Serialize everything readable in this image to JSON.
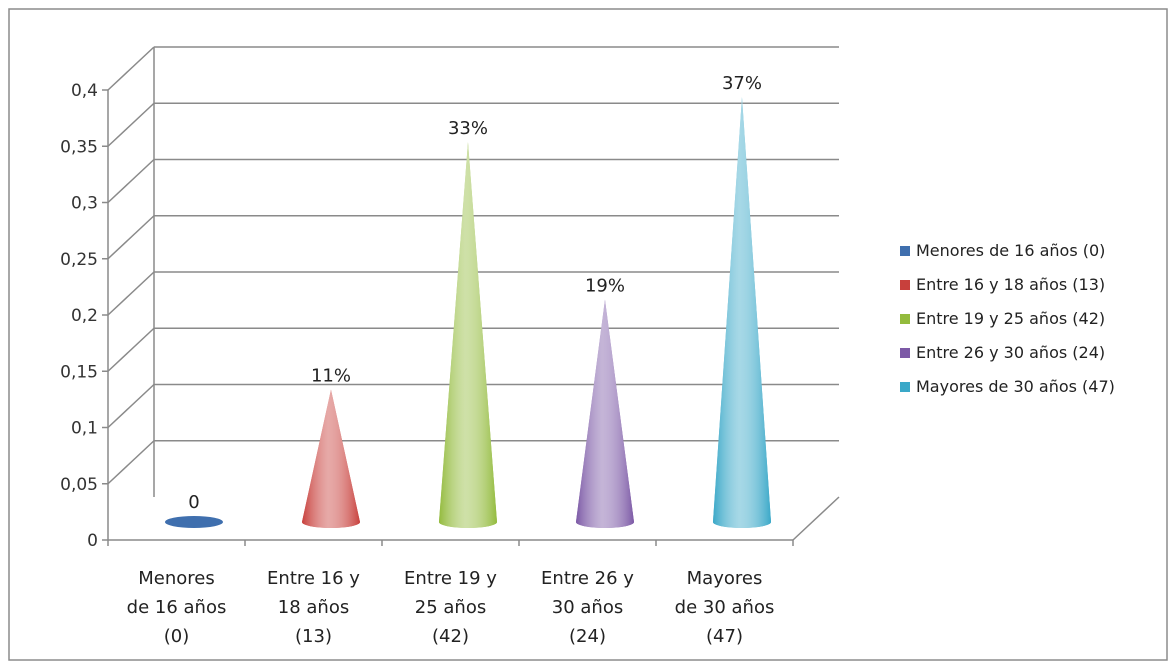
{
  "chart_data": {
    "type": "bar",
    "style": "3d-cone",
    "categories": [
      [
        "Menores",
        "de 16 años",
        "(0)"
      ],
      [
        "Entre 16 y",
        "18 años",
        "(13)"
      ],
      [
        "Entre 19 y",
        "25 años",
        "(42)"
      ],
      [
        "Entre 26 y",
        "30 años",
        "(24)"
      ],
      [
        "Mayores",
        "de 30 años",
        "(47)"
      ]
    ],
    "values": [
      0,
      0.11,
      0.33,
      0.19,
      0.37
    ],
    "data_labels": [
      "0",
      "11%",
      "33%",
      "19%",
      "37%"
    ],
    "ylim": [
      0,
      0.4
    ],
    "yticks": [
      "0",
      "0,05",
      "0,1",
      "0,15",
      "0,2",
      "0,25",
      "0,3",
      "0,35",
      "0,4"
    ],
    "grid": true,
    "legend": {
      "placement": "right",
      "entries": [
        "Menores de 16 años (0)",
        "Entre 16 y 18 años (13)",
        "Entre 19 y 25 años (42)",
        "Entre 26 y 30 años (24)",
        "Mayores de 30 años (47)"
      ]
    },
    "colors": [
      "#3f6fae",
      "#c8403c",
      "#93bb3d",
      "#7c59a6",
      "#3aa8c8"
    ]
  }
}
